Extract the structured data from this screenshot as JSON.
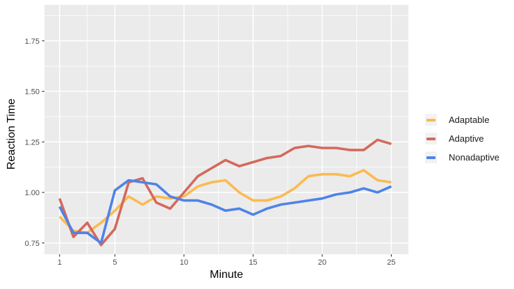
{
  "chart_data": {
    "type": "line",
    "title": "",
    "xlabel": "Minute",
    "ylabel": "Reaction Time",
    "x": [
      1,
      2,
      3,
      4,
      5,
      6,
      7,
      8,
      9,
      10,
      11,
      12,
      13,
      14,
      15,
      16,
      17,
      18,
      19,
      20,
      21,
      22,
      23,
      24,
      25
    ],
    "series": [
      {
        "name": "Adaptable",
        "color": "#FBBA51",
        "values": [
          0.88,
          0.81,
          0.8,
          0.85,
          0.91,
          0.98,
          0.94,
          0.98,
          0.97,
          0.98,
          1.03,
          1.05,
          1.06,
          1.0,
          0.96,
          0.96,
          0.98,
          1.02,
          1.08,
          1.09,
          1.09,
          1.08,
          1.11,
          1.06,
          1.05
        ]
      },
      {
        "name": "Adaptive",
        "color": "#D4695C",
        "values": [
          0.97,
          0.78,
          0.85,
          0.74,
          0.82,
          1.05,
          1.07,
          0.95,
          0.92,
          1.0,
          1.08,
          1.12,
          1.16,
          1.13,
          1.15,
          1.17,
          1.18,
          1.22,
          1.23,
          1.22,
          1.22,
          1.21,
          1.21,
          1.26,
          1.24
        ]
      },
      {
        "name": "Nonadaptive",
        "color": "#4E83E8",
        "values": [
          0.93,
          0.8,
          0.8,
          0.75,
          1.01,
          1.06,
          1.05,
          1.04,
          0.98,
          0.96,
          0.96,
          0.94,
          0.91,
          0.92,
          0.89,
          0.92,
          0.94,
          0.95,
          0.96,
          0.97,
          0.99,
          1.0,
          1.02,
          1.0,
          1.03
        ]
      }
    ],
    "x_tick_values": [
      1,
      5,
      10,
      15,
      20,
      25
    ],
    "x_tick_labels": [
      "1",
      "5",
      "10",
      "15",
      "20",
      "25"
    ],
    "x_minor_gridlines": [
      3,
      7.5,
      12.5,
      17.5,
      22.5
    ],
    "y_tick_values": [
      0.75,
      1.0,
      1.25,
      1.5,
      1.75
    ],
    "y_tick_labels": [
      "0.75",
      "1.00",
      "1.25",
      "1.50",
      "1.75"
    ],
    "y_minor_gridlines": [
      0.875,
      1.125,
      1.375,
      1.625,
      1.875
    ],
    "xlim": [
      0,
      26.2
    ],
    "ylim": [
      0.69,
      1.93
    ],
    "grid": "major+minor",
    "legend_position": "right",
    "colors": {
      "panel_background": "#EBEBEB",
      "gridline": "#FFFFFF",
      "tick_label": "#4D4D4D",
      "axis_title": "#000000",
      "legend_key_background": "#F2F2F2",
      "tick_mark": "#333333"
    }
  }
}
